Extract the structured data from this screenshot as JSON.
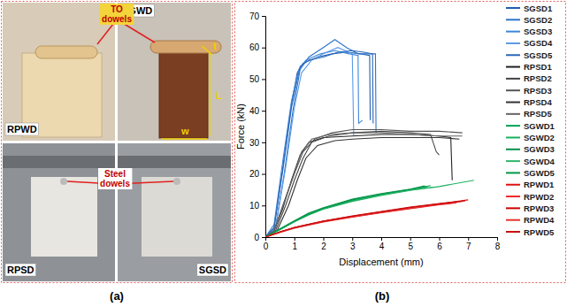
{
  "chart_data": {
    "type": "line",
    "panel_label": "(b)",
    "x_label": "Displacement (mm)",
    "y_label": "Force (kN)",
    "xlim": [
      0,
      8
    ],
    "xticks": [
      0,
      1,
      2,
      3,
      4,
      5,
      6,
      7,
      8
    ],
    "ylim": [
      0,
      70
    ],
    "yticks": [
      0,
      10,
      20,
      30,
      40,
      50,
      60,
      70
    ],
    "grid": false,
    "legend": "right",
    "series": [
      {
        "name": "SGSD1",
        "color": "#1f5fb0",
        "x": [
          0,
          0.3,
          0.6,
          0.9,
          1.1,
          1.3,
          1.8,
          2.3,
          2.8,
          3.3,
          3.6,
          3.62
        ],
        "values": [
          0,
          3,
          22,
          42,
          52,
          55,
          57,
          58,
          58.5,
          58,
          57.5,
          37
        ]
      },
      {
        "name": "SGSD2",
        "color": "#2e75c8",
        "x": [
          0,
          0.35,
          0.65,
          0.95,
          1.2,
          1.5,
          2.0,
          2.4,
          2.8,
          3.2,
          3.8,
          3.82
        ],
        "values": [
          0,
          3,
          20,
          40,
          53,
          57,
          60,
          62.5,
          60,
          58,
          58,
          33
        ]
      },
      {
        "name": "SGSD3",
        "color": "#3f86d8",
        "x": [
          0,
          0.3,
          0.6,
          0.9,
          1.15,
          1.4,
          1.9,
          2.4,
          2.9,
          3.2,
          3.22,
          3.35
        ],
        "values": [
          0,
          4,
          24,
          43,
          53,
          56,
          58,
          59,
          58,
          57.5,
          36,
          37
        ]
      },
      {
        "name": "SGSD4",
        "color": "#5a9be6",
        "x": [
          0,
          0.35,
          0.7,
          1.0,
          1.25,
          1.6,
          2.0,
          2.5,
          3.0,
          3.05
        ],
        "values": [
          0,
          3,
          22,
          41,
          52,
          56,
          58,
          60,
          58,
          32
        ]
      },
      {
        "name": "SGSD5",
        "color": "#2a67b8",
        "x": [
          0,
          0.3,
          0.6,
          0.9,
          1.2,
          1.5,
          2.0,
          2.5,
          3.0,
          3.4,
          3.7,
          3.72
        ],
        "values": [
          0,
          3,
          21,
          41,
          54,
          56,
          57,
          58.5,
          59,
          58.5,
          58,
          36
        ]
      },
      {
        "name": "RPSD1",
        "color": "#222222",
        "x": [
          0,
          0.3,
          0.6,
          0.9,
          1.2,
          1.5,
          2.0,
          3.0,
          4.0,
          5.0,
          6.0,
          6.4,
          6.45
        ],
        "values": [
          0,
          2,
          9,
          18,
          26,
          30,
          31.5,
          32,
          32.5,
          32.5,
          32,
          31.5,
          18
        ]
      },
      {
        "name": "RPSD2",
        "color": "#444444",
        "x": [
          0,
          0.35,
          0.7,
          1.0,
          1.3,
          1.6,
          2.2,
          3.0,
          4.0,
          5.0,
          5.7,
          5.9,
          6.0
        ],
        "values": [
          0,
          2,
          10,
          18,
          25,
          30,
          32,
          33,
          33.5,
          33,
          32.5,
          27,
          26
        ]
      },
      {
        "name": "RPSD3",
        "color": "#555555",
        "x": [
          0,
          0.3,
          0.65,
          1.0,
          1.3,
          1.7,
          2.3,
          3.0,
          4.0,
          5.0,
          6.0,
          6.8
        ],
        "values": [
          0,
          2,
          11,
          20,
          27,
          31,
          33,
          34,
          34,
          33.5,
          33.5,
          33
        ]
      },
      {
        "name": "RPSD4",
        "color": "#333333",
        "x": [
          0,
          0.4,
          0.8,
          1.1,
          1.4,
          1.8,
          2.4,
          3.0,
          4.0,
          5.0,
          6.0,
          6.7
        ],
        "values": [
          0,
          2,
          10,
          18,
          25,
          29,
          30.5,
          31,
          31.5,
          31.5,
          31.5,
          31
        ]
      },
      {
        "name": "RPSD5",
        "color": "#666666",
        "x": [
          0,
          0.3,
          0.6,
          0.95,
          1.25,
          1.6,
          2.2,
          3.0,
          4.0,
          5.0,
          6.0,
          6.8
        ],
        "values": [
          0,
          2,
          10,
          19,
          27,
          31,
          32.5,
          33,
          33,
          32.5,
          32,
          32
        ]
      },
      {
        "name": "SGWD1",
        "color": "#00a050",
        "x": [
          0,
          0.5,
          1.0,
          1.5,
          2.0,
          3.0,
          4.0,
          5.0,
          5.6
        ],
        "values": [
          0,
          2.5,
          5,
          7.5,
          9,
          11.5,
          13.5,
          15,
          16
        ]
      },
      {
        "name": "SGWD2",
        "color": "#1bb060",
        "x": [
          0,
          0.5,
          1.0,
          1.5,
          2.0,
          3.0,
          4.0,
          5.0,
          6.0,
          7.2
        ],
        "values": [
          0,
          2.3,
          4.8,
          7,
          8.8,
          11.3,
          13.2,
          14.8,
          16,
          18
        ]
      },
      {
        "name": "SGWD3",
        "color": "#08904a",
        "x": [
          0,
          0.5,
          1.0,
          1.5,
          2.0,
          3.0,
          4.0,
          5.0,
          5.5
        ],
        "values": [
          0,
          2.6,
          5.2,
          7.6,
          9.3,
          12,
          13.8,
          15.2,
          16.2
        ]
      },
      {
        "name": "SGWD4",
        "color": "#30b870",
        "x": [
          0,
          0.5,
          1.0,
          1.5,
          2.0,
          3.0,
          4.0,
          5.0,
          5.8
        ],
        "values": [
          0,
          2.4,
          4.9,
          7.2,
          9,
          11.7,
          13.4,
          14.9,
          15.8
        ]
      },
      {
        "name": "SGWD5",
        "color": "#009848",
        "x": [
          0,
          0.5,
          1.0,
          1.5,
          2.0,
          3.0,
          4.0,
          5.0,
          5.7
        ],
        "values": [
          0,
          2.5,
          5,
          7.3,
          9.1,
          11.8,
          13.6,
          15.1,
          16.3
        ]
      },
      {
        "name": "RPWD1",
        "color": "#e01010",
        "x": [
          0,
          0.5,
          1.0,
          2.0,
          3.0,
          4.0,
          5.0,
          6.0,
          7.0
        ],
        "values": [
          0,
          1.6,
          3,
          5,
          6.5,
          8,
          9.3,
          10.5,
          11.8
        ]
      },
      {
        "name": "RPWD2",
        "color": "#f02828",
        "x": [
          0,
          0.5,
          1.0,
          2.0,
          3.0,
          4.0,
          5.0,
          6.0,
          6.6
        ],
        "values": [
          0,
          1.5,
          2.8,
          4.8,
          6.3,
          7.7,
          9,
          10.2,
          10.8
        ]
      },
      {
        "name": "RPWD3",
        "color": "#d00000",
        "x": [
          0,
          0.5,
          1.0,
          2.0,
          3.0,
          4.0,
          5.0,
          6.0,
          6.9
        ],
        "values": [
          0,
          1.7,
          3.1,
          5.1,
          6.7,
          8.1,
          9.5,
          10.6,
          11.5
        ]
      },
      {
        "name": "RPWD4",
        "color": "#e83030",
        "x": [
          0,
          0.5,
          1.0,
          2.0,
          3.0,
          4.0,
          5.0,
          6.0,
          6.5
        ],
        "values": [
          0,
          1.5,
          2.9,
          4.9,
          6.4,
          7.8,
          9.1,
          10.3,
          10.9
        ]
      },
      {
        "name": "RPWD5",
        "color": "#c81010",
        "x": [
          0,
          0.5,
          1.0,
          2.0,
          3.0,
          4.0,
          5.0,
          6.0,
          6.8
        ],
        "values": [
          0,
          1.6,
          3,
          5,
          6.6,
          8,
          9.4,
          10.5,
          11.3
        ]
      }
    ]
  },
  "photos": {
    "panel_label": "(a)",
    "tiles": [
      {
        "label": "RPWD"
      },
      {
        "label": "SGWD"
      },
      {
        "label": "RPSD"
      },
      {
        "label": "SGSD"
      }
    ],
    "callouts": [
      "TO dowels",
      "Steel dowels"
    ],
    "dimensions": [
      "t",
      "L",
      "w"
    ]
  }
}
